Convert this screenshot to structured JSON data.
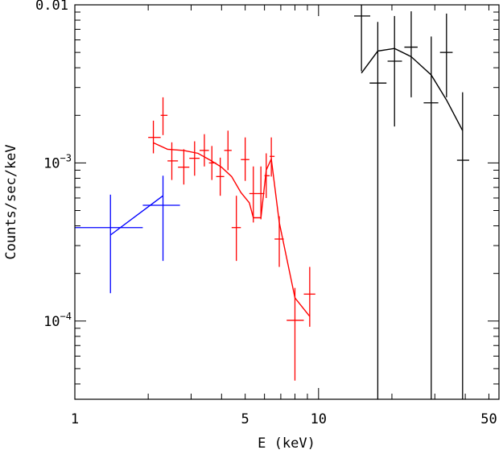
{
  "chart_data": {
    "type": "scatter",
    "title": "",
    "xlabel": "E (keV)",
    "ylabel": "Counts/sec/keV",
    "x_scale": "log",
    "y_scale": "log",
    "xlim": [
      1,
      55
    ],
    "ylim": [
      3.2e-05,
      0.01
    ],
    "x_tick_labels": [
      {
        "value": 1,
        "label": "1"
      },
      {
        "value": 5,
        "label": "5"
      },
      {
        "value": 10,
        "label": "10"
      },
      {
        "value": 50,
        "label": "50"
      }
    ],
    "y_tick_labels": [
      {
        "value": 0.01,
        "label": "0.01"
      },
      {
        "value": 0.001,
        "label": "10",
        "exp": "−3"
      },
      {
        "value": 0.0001,
        "label": "10",
        "exp": "−4"
      }
    ],
    "grid": false,
    "series": [
      {
        "color": "#0000ff",
        "points": [
          {
            "x": 1.4,
            "xlo": 1.0,
            "xhi": 1.9,
            "y": 0.00039,
            "ylo": 0.00015,
            "yhi": 0.00063
          },
          {
            "x": 2.3,
            "xlo": 1.9,
            "xhi": 2.7,
            "y": 0.00054,
            "ylo": 0.00024,
            "yhi": 0.00083
          }
        ],
        "model": [
          [
            1.4,
            0.00035
          ],
          [
            2.3,
            0.00062
          ]
        ]
      },
      {
        "color": "#ff0000",
        "points": [
          {
            "x": 2.1,
            "xlo": 2.0,
            "xhi": 2.25,
            "y": 0.00145,
            "ylo": 0.00115,
            "yhi": 0.00185
          },
          {
            "x": 2.3,
            "xlo": 2.25,
            "xhi": 2.4,
            "y": 0.002,
            "ylo": 0.0015,
            "yhi": 0.0026
          },
          {
            "x": 2.5,
            "xlo": 2.4,
            "xhi": 2.65,
            "y": 0.00103,
            "ylo": 0.00078,
            "yhi": 0.00135
          },
          {
            "x": 2.8,
            "xlo": 2.65,
            "xhi": 2.95,
            "y": 0.00094,
            "ylo": 0.00073,
            "yhi": 0.00122
          },
          {
            "x": 3.1,
            "xlo": 2.95,
            "xhi": 3.25,
            "y": 0.00107,
            "ylo": 0.00083,
            "yhi": 0.00137
          },
          {
            "x": 3.4,
            "xlo": 3.25,
            "xhi": 3.55,
            "y": 0.0012,
            "ylo": 0.00095,
            "yhi": 0.00152
          },
          {
            "x": 3.65,
            "xlo": 3.55,
            "xhi": 3.8,
            "y": 0.001,
            "ylo": 0.00078,
            "yhi": 0.00128
          },
          {
            "x": 3.95,
            "xlo": 3.8,
            "xhi": 4.1,
            "y": 0.00082,
            "ylo": 0.00062,
            "yhi": 0.00108
          },
          {
            "x": 4.25,
            "xlo": 4.1,
            "xhi": 4.4,
            "y": 0.0012,
            "ylo": 0.0009,
            "yhi": 0.0016
          },
          {
            "x": 4.6,
            "xlo": 4.4,
            "xhi": 4.8,
            "y": 0.00039,
            "ylo": 0.00024,
            "yhi": 0.00062
          },
          {
            "x": 5.0,
            "xlo": 4.8,
            "xhi": 5.2,
            "y": 0.00105,
            "ylo": 0.00077,
            "yhi": 0.00145
          },
          {
            "x": 5.4,
            "xlo": 5.2,
            "xhi": 5.6,
            "y": 0.00064,
            "ylo": 0.00042,
            "yhi": 0.00095
          },
          {
            "x": 5.8,
            "xlo": 5.6,
            "xhi": 6.0,
            "y": 0.00064,
            "ylo": 0.00044,
            "yhi": 0.00095
          },
          {
            "x": 6.1,
            "xlo": 6.0,
            "xhi": 6.3,
            "y": 0.00083,
            "ylo": 0.0006,
            "yhi": 0.00115
          },
          {
            "x": 6.4,
            "xlo": 6.3,
            "xhi": 6.6,
            "y": 0.0011,
            "ylo": 0.00082,
            "yhi": 0.00145
          },
          {
            "x": 6.9,
            "xlo": 6.6,
            "xhi": 7.2,
            "y": 0.00033,
            "ylo": 0.00022,
            "yhi": 0.00046
          },
          {
            "x": 8.0,
            "xlo": 7.4,
            "xhi": 8.7,
            "y": 0.000101,
            "ylo": 4.2e-05,
            "yhi": 0.000162
          },
          {
            "x": 9.2,
            "xlo": 8.7,
            "xhi": 9.7,
            "y": 0.000148,
            "ylo": 9.2e-05,
            "yhi": 0.00022
          }
        ],
        "model": [
          [
            2.1,
            0.00134
          ],
          [
            2.4,
            0.00122
          ],
          [
            2.8,
            0.0012
          ],
          [
            3.2,
            0.00115
          ],
          [
            3.6,
            0.00104
          ],
          [
            4.0,
            0.00094
          ],
          [
            4.4,
            0.00082
          ],
          [
            4.8,
            0.00065
          ],
          [
            5.2,
            0.00056
          ],
          [
            5.4,
            0.00045
          ],
          [
            5.8,
            0.00045
          ],
          [
            6.1,
            0.0009
          ],
          [
            6.4,
            0.00106
          ],
          [
            6.9,
            0.00042
          ],
          [
            8.0,
            0.00014
          ],
          [
            9.2,
            0.000107
          ]
        ]
      },
      {
        "color": "#000000",
        "points": [
          {
            "x": 15.0,
            "xlo": 14.0,
            "xhi": 16.3,
            "y": 0.0085,
            "ylo": 0.0038,
            "yhi": 0.01
          },
          {
            "x": 17.5,
            "xlo": 16.2,
            "xhi": 19.0,
            "y": 0.0032,
            "ylo": 1e-06,
            "yhi": 0.0078
          },
          {
            "x": 20.5,
            "xlo": 19.2,
            "xhi": 22.0,
            "y": 0.0044,
            "ylo": 0.0017,
            "yhi": 0.0085
          },
          {
            "x": 24.0,
            "xlo": 22.5,
            "xhi": 25.5,
            "y": 0.0054,
            "ylo": 0.0026,
            "yhi": 0.0091
          },
          {
            "x": 29.0,
            "xlo": 27.0,
            "xhi": 31.0,
            "y": 0.0024,
            "ylo": 1e-06,
            "yhi": 0.0063
          },
          {
            "x": 33.5,
            "xlo": 31.5,
            "xhi": 35.5,
            "y": 0.005,
            "ylo": 0.0026,
            "yhi": 0.0088
          },
          {
            "x": 39.0,
            "xlo": 37.0,
            "xhi": 41.5,
            "y": 0.00104,
            "ylo": 1e-06,
            "yhi": 0.0028
          }
        ],
        "model": [
          [
            15.0,
            0.0037
          ],
          [
            17.5,
            0.0051
          ],
          [
            20.5,
            0.0053
          ],
          [
            24.0,
            0.0047
          ],
          [
            29.0,
            0.0036
          ],
          [
            33.5,
            0.0025
          ],
          [
            39.0,
            0.0016
          ]
        ]
      }
    ]
  }
}
